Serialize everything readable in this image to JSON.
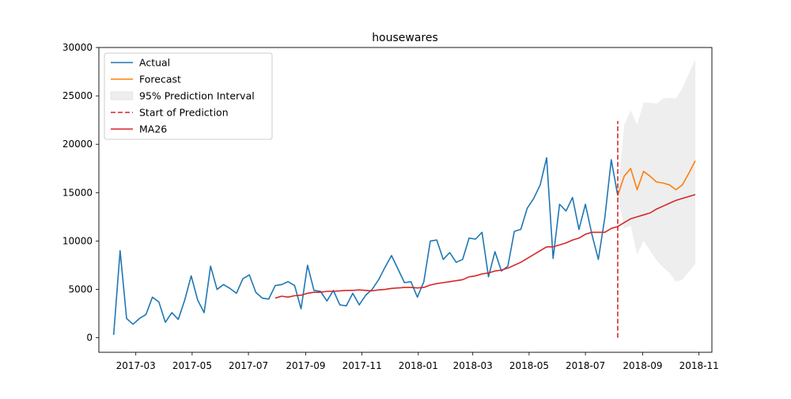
{
  "chart_data": {
    "type": "line",
    "title": "housewares",
    "xlabel": "",
    "ylabel": "",
    "xlim": [
      "2017-01-20",
      "2018-11-15"
    ],
    "ylim": [
      -1500,
      30000
    ],
    "grid": false,
    "legend_position": "top-left",
    "x_ticks": [
      "2017-03-01",
      "2017-05-01",
      "2017-07-01",
      "2017-09-01",
      "2017-11-01",
      "2018-01-01",
      "2018-03-01",
      "2018-05-01",
      "2018-07-01",
      "2018-09-01",
      "2018-11-01"
    ],
    "x_tick_labels": [
      "2017-03",
      "2017-05",
      "2017-07",
      "2017-09",
      "2017-11",
      "2018-01",
      "2018-03",
      "2018-05",
      "2018-07",
      "2018-09",
      "2018-11"
    ],
    "y_ticks": [
      0,
      5000,
      10000,
      15000,
      20000,
      25000,
      30000
    ],
    "y_tick_labels": [
      "0",
      "5000",
      "10000",
      "15000",
      "20000",
      "25000",
      "30000"
    ],
    "legend": [
      {
        "label": "Actual",
        "kind": "line",
        "color": "#1f77b4"
      },
      {
        "label": "Forecast",
        "kind": "line",
        "color": "#ff7f0e"
      },
      {
        "label": "95% Prediction Interval",
        "kind": "patch",
        "color": "#eeeeee"
      },
      {
        "label": "Start of Prediction",
        "kind": "dashed",
        "color": "#d62728"
      },
      {
        "label": "MA26",
        "kind": "line",
        "color": "#d62728"
      }
    ],
    "series": [
      {
        "name": "Actual",
        "color": "#1f77b4",
        "x": [
          "2017-02-05",
          "2017-02-12",
          "2017-02-19",
          "2017-02-26",
          "2017-03-05",
          "2017-03-12",
          "2017-03-19",
          "2017-03-26",
          "2017-04-02",
          "2017-04-09",
          "2017-04-16",
          "2017-04-23",
          "2017-04-30",
          "2017-05-07",
          "2017-05-14",
          "2017-05-21",
          "2017-05-28",
          "2017-06-04",
          "2017-06-11",
          "2017-06-18",
          "2017-06-25",
          "2017-07-02",
          "2017-07-09",
          "2017-07-16",
          "2017-07-23",
          "2017-07-30",
          "2017-08-06",
          "2017-08-13",
          "2017-08-20",
          "2017-08-27",
          "2017-09-03",
          "2017-09-10",
          "2017-09-17",
          "2017-09-24",
          "2017-10-01",
          "2017-10-08",
          "2017-10-15",
          "2017-10-22",
          "2017-10-29",
          "2017-11-05",
          "2017-11-12",
          "2017-11-19",
          "2017-11-26",
          "2017-12-03",
          "2017-12-10",
          "2017-12-17",
          "2017-12-24",
          "2017-12-31",
          "2018-01-07",
          "2018-01-14",
          "2018-01-21",
          "2018-01-28",
          "2018-02-04",
          "2018-02-11",
          "2018-02-18",
          "2018-02-25",
          "2018-03-04",
          "2018-03-11",
          "2018-03-18",
          "2018-03-25",
          "2018-04-01",
          "2018-04-08",
          "2018-04-15",
          "2018-04-22",
          "2018-04-29",
          "2018-05-06",
          "2018-05-13",
          "2018-05-20",
          "2018-05-27",
          "2018-06-03",
          "2018-06-10",
          "2018-06-17",
          "2018-06-24",
          "2018-07-01",
          "2018-07-08",
          "2018-07-15",
          "2018-07-22",
          "2018-07-29",
          "2018-08-05"
        ],
        "values": [
          300,
          9000,
          2000,
          1400,
          2000,
          2400,
          4200,
          3700,
          1600,
          2600,
          1900,
          3900,
          6400,
          3900,
          2600,
          7400,
          5000,
          5500,
          5100,
          4600,
          6100,
          6500,
          4700,
          4100,
          4000,
          5400,
          5500,
          5800,
          5400,
          3000,
          7500,
          4900,
          4800,
          3800,
          4900,
          3400,
          3300,
          4600,
          3400,
          4400,
          5000,
          6000,
          7300,
          8500,
          7100,
          5700,
          5800,
          4200,
          5800,
          10000,
          10100,
          8100,
          8800,
          7800,
          8100,
          10300,
          10200,
          10900,
          6300,
          8900,
          6900,
          7400,
          11000,
          11200,
          13400,
          14400,
          15800,
          18600,
          8200,
          13800,
          13100,
          14500,
          11200,
          13800,
          10700,
          8100,
          12400,
          18400,
          14700
        ]
      },
      {
        "name": "Forecast",
        "color": "#ff7f0e",
        "x": [
          "2018-08-05",
          "2018-08-12",
          "2018-08-19",
          "2018-08-26",
          "2018-09-02",
          "2018-09-09",
          "2018-09-16",
          "2018-09-23",
          "2018-09-30",
          "2018-10-07",
          "2018-10-14",
          "2018-10-21",
          "2018-10-28"
        ],
        "values": [
          14700,
          16700,
          17500,
          15300,
          17200,
          16700,
          16100,
          16000,
          15800,
          15300,
          15800,
          17000,
          18300
        ]
      },
      {
        "name": "95% Prediction Interval",
        "color": "#eeeeee",
        "x": [
          "2018-08-05",
          "2018-08-12",
          "2018-08-19",
          "2018-08-26",
          "2018-09-02",
          "2018-09-09",
          "2018-09-16",
          "2018-09-23",
          "2018-09-30",
          "2018-10-07",
          "2018-10-14",
          "2018-10-21",
          "2018-10-28"
        ],
        "upper": [
          14700,
          22000,
          23500,
          22000,
          24300,
          24300,
          24200,
          24700,
          24800,
          24700,
          25800,
          27300,
          28800
        ],
        "lower": [
          14700,
          11300,
          11600,
          8600,
          10000,
          9000,
          8000,
          7300,
          6700,
          5800,
          6000,
          6800,
          7600
        ]
      },
      {
        "name": "MA26",
        "color": "#d62728",
        "x": [
          "2017-07-30",
          "2017-08-06",
          "2017-08-13",
          "2017-08-20",
          "2017-08-27",
          "2017-09-03",
          "2017-09-10",
          "2017-09-17",
          "2017-09-24",
          "2017-10-01",
          "2017-10-08",
          "2017-10-15",
          "2017-10-22",
          "2017-10-29",
          "2017-11-05",
          "2017-11-12",
          "2017-11-19",
          "2017-11-26",
          "2017-12-03",
          "2017-12-10",
          "2017-12-17",
          "2017-12-24",
          "2017-12-31",
          "2018-01-07",
          "2018-01-14",
          "2018-01-21",
          "2018-01-28",
          "2018-02-04",
          "2018-02-11",
          "2018-02-18",
          "2018-02-25",
          "2018-03-04",
          "2018-03-11",
          "2018-03-18",
          "2018-03-25",
          "2018-04-01",
          "2018-04-08",
          "2018-04-15",
          "2018-04-22",
          "2018-04-29",
          "2018-05-06",
          "2018-05-13",
          "2018-05-20",
          "2018-05-27",
          "2018-06-03",
          "2018-06-10",
          "2018-06-17",
          "2018-06-24",
          "2018-07-01",
          "2018-07-08",
          "2018-07-15",
          "2018-07-22",
          "2018-07-29",
          "2018-08-05",
          "2018-08-12",
          "2018-08-19",
          "2018-08-26",
          "2018-09-02",
          "2018-09-09",
          "2018-09-16",
          "2018-09-23",
          "2018-09-30",
          "2018-10-07",
          "2018-10-14",
          "2018-10-21",
          "2018-10-28"
        ],
        "values": [
          4100,
          4300,
          4200,
          4350,
          4400,
          4600,
          4700,
          4700,
          4800,
          4800,
          4850,
          4900,
          4900,
          4950,
          4900,
          4850,
          4950,
          5000,
          5100,
          5150,
          5200,
          5200,
          5150,
          5200,
          5450,
          5600,
          5700,
          5800,
          5900,
          6000,
          6300,
          6400,
          6600,
          6700,
          6900,
          7000,
          7200,
          7500,
          7800,
          8200,
          8600,
          9000,
          9400,
          9400,
          9600,
          9800,
          10100,
          10300,
          10700,
          10900,
          10900,
          10900,
          11300,
          11500,
          11900,
          12300,
          12500,
          12700,
          12900,
          13300,
          13600,
          13900,
          14200,
          14400,
          14600,
          14800
        ]
      }
    ],
    "vline": {
      "name": "Start of Prediction",
      "x": "2018-08-05",
      "y_top": 22400,
      "color": "#d62728"
    }
  }
}
